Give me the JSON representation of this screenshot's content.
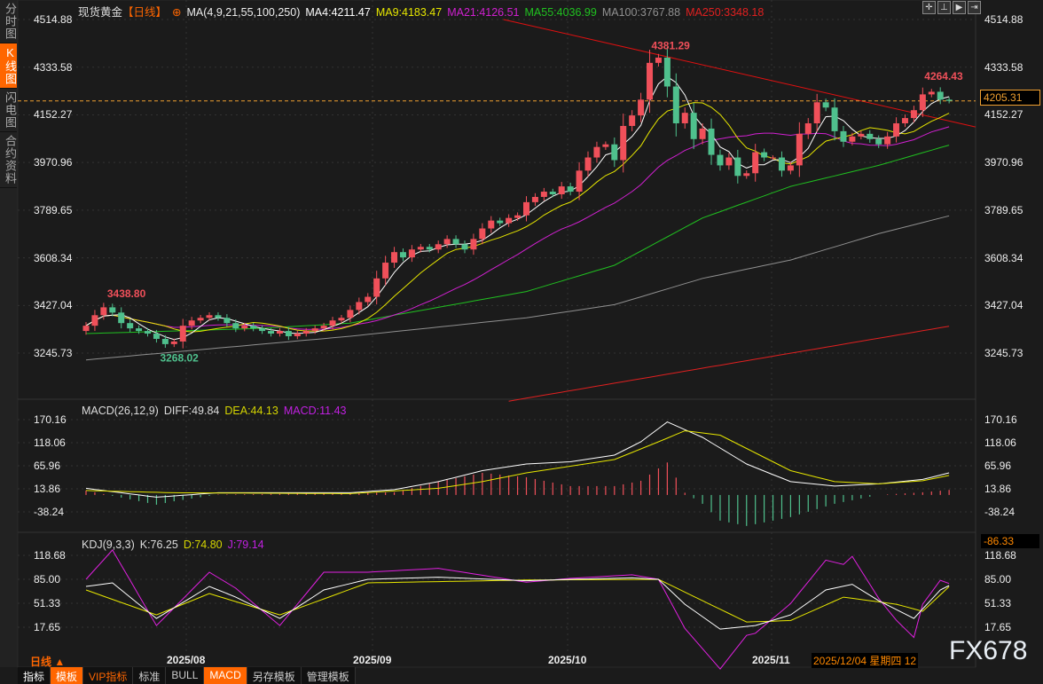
{
  "sidebar": {
    "tabs": [
      "分时图",
      "K线图",
      "闪电图",
      "合约资料"
    ],
    "active": 1
  },
  "header": {
    "instrument": "现货黄金",
    "period": "【日线】",
    "ma_label": "MA(4,9,21,55,100,250)",
    "ma4": "MA4:4211.47",
    "ma9": "MA9:4183.47",
    "ma21": "MA21:4126.51",
    "ma55": "MA55:4036.99",
    "ma100": "MA100:3767.88",
    "ma250": "MA250:3348.18"
  },
  "macd_legend": {
    "name": "MACD(26,12,9)",
    "diff": "DIFF:49.84",
    "dea": "DEA:44.13",
    "macd": "MACD:11.43"
  },
  "kdj_legend": {
    "name": "KDJ(9,3,3)",
    "k": "K:76.25",
    "d": "D:74.80",
    "j": "J:79.14"
  },
  "colors": {
    "up": "#f0505a",
    "down": "#4fc08d",
    "ma4": "#ffffff",
    "ma9": "#e6e600",
    "ma21": "#d020d0",
    "ma55": "#20c020",
    "ma100": "#909090",
    "ma250": "#e02020",
    "trend": "#e01010",
    "current": "#f0a030"
  },
  "chart_data": [
    {
      "type": "candlestick",
      "title": "现货黄金 日线",
      "y_ticks": [
        "4514.88",
        "4333.58",
        "4152.27",
        "3970.96",
        "3789.65",
        "3608.34",
        "3427.04",
        "3245.73"
      ],
      "ylim": [
        3245.73,
        4514.88
      ],
      "x_ticks": [
        "2025/08",
        "2025/09",
        "2025/10",
        "2025/11"
      ],
      "closes": [
        3350,
        3390,
        3420,
        3400,
        3360,
        3340,
        3330,
        3320,
        3300,
        3280,
        3290,
        3350,
        3370,
        3380,
        3390,
        3380,
        3360,
        3340,
        3350,
        3340,
        3330,
        3320,
        3330,
        3310,
        3320,
        3330,
        3340,
        3350,
        3370,
        3380,
        3410,
        3440,
        3460,
        3530,
        3590,
        3630,
        3610,
        3640,
        3650,
        3640,
        3660,
        3680,
        3660,
        3640,
        3680,
        3720,
        3750,
        3740,
        3760,
        3770,
        3820,
        3840,
        3860,
        3850,
        3880,
        3860,
        3940,
        3990,
        4030,
        4040,
        3980,
        4110,
        4150,
        4210,
        4350,
        4370,
        4260,
        4120,
        4160,
        4060,
        4100,
        4000,
        3960,
        3990,
        3920,
        3930,
        4010,
        3990,
        3990,
        3940,
        3960,
        4080,
        4120,
        4200,
        4180,
        4090,
        4050,
        4070,
        4080,
        4060,
        4040,
        4070,
        4120,
        4140,
        4170,
        4230,
        4240,
        4210,
        4205.31
      ],
      "annotations": [
        {
          "text": "4381.29",
          "index": 65,
          "price": 4381.29
        },
        {
          "text": "4264.43",
          "index": 96,
          "price": 4264.43
        },
        {
          "text": "3438.80",
          "index": 2,
          "price": 3438.8
        },
        {
          "text": "3268.02",
          "index": 8,
          "price": 3268.02
        }
      ],
      "current_price": "4205.31",
      "ma55": [
        [
          0,
          3320
        ],
        [
          20,
          3340
        ],
        [
          30,
          3360
        ],
        [
          40,
          3420
        ],
        [
          50,
          3480
        ],
        [
          60,
          3580
        ],
        [
          70,
          3760
        ],
        [
          80,
          3880
        ],
        [
          90,
          3960
        ],
        [
          98,
          4037
        ]
      ],
      "ma100": [
        [
          0,
          3220
        ],
        [
          30,
          3310
        ],
        [
          50,
          3380
        ],
        [
          60,
          3430
        ],
        [
          70,
          3530
        ],
        [
          80,
          3600
        ],
        [
          90,
          3700
        ],
        [
          98,
          3768
        ]
      ],
      "ma250": [
        [
          48,
          3063
        ],
        [
          98,
          3348
        ]
      ],
      "trendline": [
        [
          47.4,
          4515
        ],
        [
          101,
          4106
        ]
      ]
    },
    {
      "type": "line",
      "title": "MACD(26,12,9)",
      "y_ticks": [
        "170.16",
        "118.06",
        "65.96",
        "13.86",
        "-38.24"
      ],
      "ylim": [
        -38.24,
        170.16
      ],
      "min_label": "-86.33",
      "diff": [
        [
          0,
          15
        ],
        [
          8,
          -5
        ],
        [
          15,
          5
        ],
        [
          25,
          5
        ],
        [
          30,
          5
        ],
        [
          35,
          12
        ],
        [
          40,
          30
        ],
        [
          45,
          55
        ],
        [
          50,
          70
        ],
        [
          55,
          75
        ],
        [
          60,
          90
        ],
        [
          63,
          120
        ],
        [
          66,
          165
        ],
        [
          70,
          130
        ],
        [
          75,
          70
        ],
        [
          80,
          30
        ],
        [
          85,
          20
        ],
        [
          90,
          25
        ],
        [
          95,
          35
        ],
        [
          98,
          49.84
        ]
      ],
      "dea": [
        [
          0,
          10
        ],
        [
          10,
          5
        ],
        [
          30,
          3
        ],
        [
          40,
          15
        ],
        [
          45,
          30
        ],
        [
          50,
          50
        ],
        [
          55,
          65
        ],
        [
          60,
          80
        ],
        [
          65,
          120
        ],
        [
          68,
          145
        ],
        [
          72,
          135
        ],
        [
          76,
          95
        ],
        [
          80,
          55
        ],
        [
          85,
          30
        ],
        [
          90,
          25
        ],
        [
          95,
          32
        ],
        [
          98,
          44.13
        ]
      ]
    },
    {
      "type": "line",
      "title": "KDJ(9,3,3)",
      "y_ticks": [
        "118.68",
        "85.00",
        "51.33",
        "17.65"
      ],
      "ylim": [
        17.65,
        118.68
      ],
      "k": [
        [
          0,
          75
        ],
        [
          3,
          80
        ],
        [
          8,
          30
        ],
        [
          12,
          60
        ],
        [
          14,
          75
        ],
        [
          17,
          60
        ],
        [
          22,
          30
        ],
        [
          27,
          70
        ],
        [
          32,
          85
        ],
        [
          40,
          88
        ],
        [
          50,
          83
        ],
        [
          55,
          85
        ],
        [
          62,
          87
        ],
        [
          65,
          85
        ],
        [
          68,
          50
        ],
        [
          72,
          15
        ],
        [
          76,
          20
        ],
        [
          80,
          35
        ],
        [
          84,
          70
        ],
        [
          87,
          78
        ],
        [
          90,
          55
        ],
        [
          94,
          30
        ],
        [
          97,
          70
        ],
        [
          98,
          76.25
        ]
      ],
      "d": [
        [
          0,
          70
        ],
        [
          8,
          35
        ],
        [
          14,
          65
        ],
        [
          22,
          35
        ],
        [
          32,
          80
        ],
        [
          50,
          84
        ],
        [
          65,
          85
        ],
        [
          70,
          55
        ],
        [
          75,
          25
        ],
        [
          80,
          27
        ],
        [
          86,
          60
        ],
        [
          92,
          50
        ],
        [
          95,
          40
        ],
        [
          98,
          74.8
        ]
      ]
    }
  ],
  "footer": {
    "period": "日线 ▲",
    "cursor_date": "2025/12/04 星期四 12",
    "watermark": "FX678",
    "toolbar": [
      "指标",
      "模板",
      "VIP指标",
      "标准",
      "BULL",
      "MACD",
      "另存模板",
      "管理模板"
    ]
  }
}
